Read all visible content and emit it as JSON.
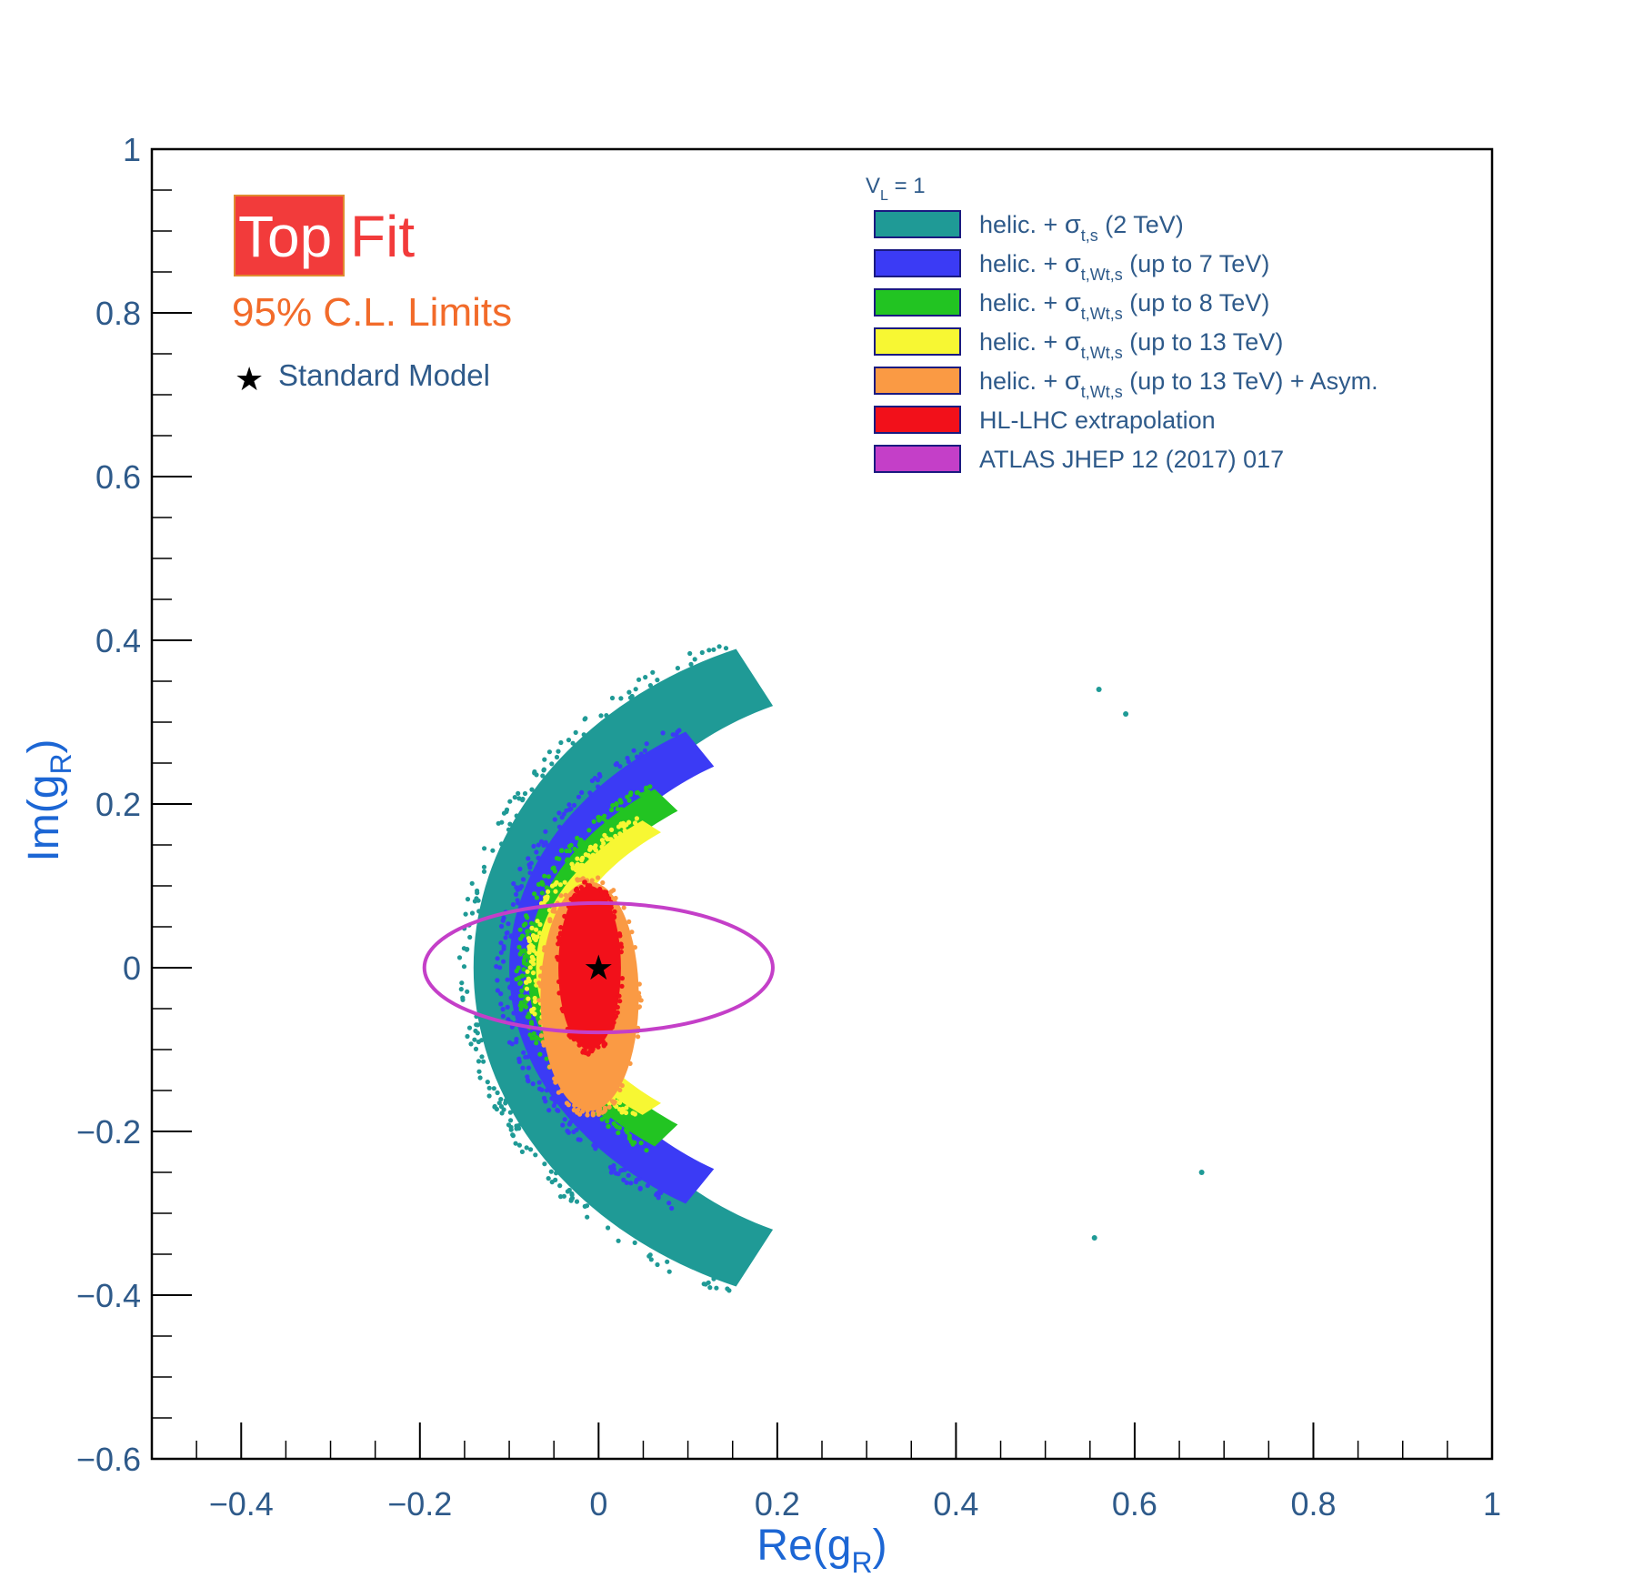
{
  "chart_data": {
    "type": "scatter",
    "title": "",
    "xlabel": "Re(g",
    "xlabel_sub": "R",
    "xlabel_close": ")",
    "ylabel": "Im(g",
    "ylabel_sub": "R",
    "ylabel_close": ")",
    "xlim": [
      -0.5,
      1.0
    ],
    "ylim": [
      -0.6,
      1.0
    ],
    "x_ticks": [
      -0.4,
      -0.2,
      0,
      0.2,
      0.4,
      0.6,
      0.8,
      1
    ],
    "x_tick_labels": [
      "−0.4",
      "−0.2",
      "0",
      "0.2",
      "0.4",
      "0.6",
      "0.8",
      "1"
    ],
    "y_ticks": [
      -0.6,
      -0.4,
      -0.2,
      0,
      0.2,
      0.4,
      0.6,
      0.8,
      1
    ],
    "y_tick_labels": [
      "−0.6",
      "−0.4",
      "−0.2",
      "0",
      "0.2",
      "0.4",
      "0.6",
      "0.8",
      "1"
    ],
    "grid": false,
    "legend_position": "top-right",
    "legend_header": {
      "base": "V",
      "sub": "L",
      "rest": " = 1"
    },
    "series": [
      {
        "name": "helic. + σ_t,s (2 TeV)",
        "legend": {
          "pre": "helic. + ",
          "sym": "σ",
          "sub": "t,s",
          "post": "    (2 TeV)"
        },
        "color": "#1f9a96",
        "region": {
          "center": [
            0.33,
            0.0
          ],
          "outer_radii": [
            0.47,
            0.42
          ],
          "inner_radii": [
            0.36,
            0.345
          ],
          "arc_deg": [
            112,
            248
          ]
        }
      },
      {
        "name": "helic. + σ_t,Wt,s (up to 7 TeV)",
        "legend": {
          "pre": "helic. + ",
          "sym": "σ",
          "sub": "t,Wt,s",
          "post": " (up to 7 TeV)"
        },
        "color": "#3b3bf5",
        "region": {
          "center": [
            0.32,
            0.0
          ],
          "outer_radii": [
            0.42,
            0.34
          ],
          "inner_radii": [
            0.36,
            0.29
          ],
          "arc_deg": [
            122,
            238
          ]
        }
      },
      {
        "name": "helic. + σ_t,Wt,s (up to 8 TeV)",
        "legend": {
          "pre": "helic. + ",
          "sym": "σ",
          "sub": "t,Wt,s",
          "post": " (up to 8 TeV)"
        },
        "color": "#22c422",
        "region": {
          "center": [
            0.32,
            0.0
          ],
          "outer_radii": [
            0.4,
            0.285
          ],
          "inner_radii": [
            0.36,
            0.25
          ],
          "arc_deg": [
            130,
            230
          ]
        }
      },
      {
        "name": "helic. + σ_t,Wt,s (up to 13 TeV)",
        "legend": {
          "pre": "helic. + ",
          "sym": "σ",
          "sub": "t,Wt,s",
          "post": " (up to 13 TeV)"
        },
        "color": "#f7f733",
        "region": {
          "center": [
            0.32,
            0.0
          ],
          "outer_radii": [
            0.39,
            0.25
          ],
          "inner_radii": [
            0.36,
            0.23
          ],
          "arc_deg": [
            134,
            226
          ]
        }
      },
      {
        "name": "helic. + σ_t,Wt,s (up to 13 TeV) + Asym.",
        "legend": {
          "pre": "helic. + ",
          "sym": "σ",
          "sub": "t,Wt,s",
          "post": " (up to 13 TeV) + Asym."
        },
        "color": "#fa9a44",
        "region": {
          "center": [
            -0.01,
            -0.035
          ],
          "radii": [
            0.055,
            0.14
          ]
        }
      },
      {
        "name": "HL-LHC extrapolation",
        "legend": {
          "pre": "HL-LHC extrapolation",
          "sym": "",
          "sub": "",
          "post": ""
        },
        "color": "#f2101a",
        "region": {
          "center": [
            -0.01,
            0.0
          ],
          "radii": [
            0.035,
            0.1
          ]
        }
      },
      {
        "name": "ATLAS JHEP 12 (2017) 017",
        "legend": {
          "pre": "ATLAS JHEP 12 (2017) 017",
          "sym": "",
          "sub": "",
          "post": ""
        },
        "color": "#c43fc8",
        "contour": {
          "type": "ellipse",
          "center": [
            0.0,
            0.0
          ],
          "radii": [
            0.195,
            0.079
          ]
        }
      }
    ],
    "sm_point": {
      "x": 0,
      "y": 0,
      "label": "Standard Model"
    }
  },
  "branding": {
    "logo_part1": "Top",
    "logo_part2": "Fit",
    "subtitle": "95% C.L. Limits",
    "logo_bg_color": "#f23b3b",
    "logo_text_color": "#ffffff",
    "logo_accent_color": "#f23b3b",
    "subtitle_color": "#f26b2a"
  },
  "colors": {
    "axis_text": "#2e5a8a",
    "axis_title": "#1c66d4",
    "legend_text": "#2e5a8a",
    "frame": "#000000"
  }
}
